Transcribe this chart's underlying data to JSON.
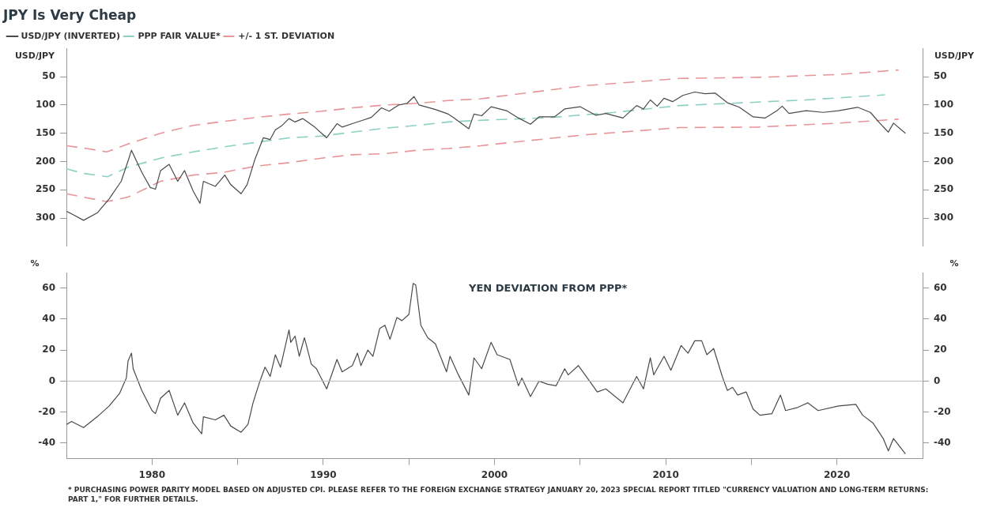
{
  "chart_data": [
    {
      "type": "line",
      "title": "JPY Is Very Cheap",
      "ylabel": "USD/JPY",
      "y2label": "USD/JPY",
      "xlim": [
        1975,
        2025
      ],
      "ylim": [
        350,
        0
      ],
      "yticks": [
        50,
        100,
        150,
        200,
        250,
        300
      ],
      "y2lim": [
        350,
        0
      ],
      "y2ticks": [
        50,
        100,
        150,
        200,
        250,
        300
      ],
      "tick_labels": "y",
      "grid": false,
      "legend": "top left",
      "marker": "none",
      "series": [
        {
          "name": "USD/JPY (INVERTED)",
          "color": "#4a4a4a",
          "line_style": "solid",
          "x": [
            1975.0,
            1975.2,
            1976.0,
            1976.8,
            1977.5,
            1978.2,
            1978.6,
            1978.8,
            1979.4,
            1979.9,
            1980.2,
            1980.5,
            1981.0,
            1981.5,
            1981.9,
            1982.4,
            1982.8,
            1983.0,
            1983.7,
            1984.25,
            1984.6,
            1985.2,
            1985.55,
            1986.0,
            1986.5,
            1986.9,
            1987.2,
            1987.6,
            1988.0,
            1988.35,
            1988.8,
            1989.5,
            1990.2,
            1990.8,
            1991.1,
            1991.7,
            1992.3,
            1992.8,
            1993.4,
            1993.85,
            1994.4,
            1994.9,
            1995.3,
            1995.6,
            1996.55,
            1997.3,
            1997.6,
            1998.5,
            1998.8,
            1999.25,
            1999.8,
            2000.7,
            2001.4,
            2002.1,
            2002.6,
            2003.5,
            2004.1,
            2005.0,
            2005.9,
            2006.5,
            2007.5,
            2008.3,
            2008.7,
            2009.1,
            2009.5,
            2009.9,
            2010.4,
            2011.0,
            2011.7,
            2012.3,
            2012.9,
            2013.6,
            2014.3,
            2015.1,
            2015.8,
            2016.5,
            2016.8,
            2017.2,
            2018.2,
            2019.2,
            2020.1,
            2021.2,
            2021.95,
            2022.5,
            2023.0,
            2023.3,
            2024.0
          ],
          "values": [
            288,
            291,
            304,
            291,
            266,
            235,
            199,
            180,
            219,
            246,
            249,
            216,
            205,
            235,
            216,
            252,
            274,
            235,
            244,
            224,
            241,
            257,
            241,
            197,
            158,
            161,
            144,
            136,
            124,
            130,
            124,
            139,
            158,
            133,
            139,
            133,
            127,
            122,
            105,
            111,
            100,
            97,
            85,
            100,
            108,
            116,
            122,
            142,
            116,
            119,
            103,
            110,
            123,
            134,
            121,
            121,
            107,
            103,
            118,
            115,
            123,
            101,
            107,
            91,
            102,
            88,
            94,
            83,
            77,
            80,
            79,
            96,
            104,
            121,
            123,
            110,
            102,
            115,
            110,
            113,
            110,
            104,
            113,
            132,
            148,
            132,
            150
          ]
        },
        {
          "name": "PPP FAIR VALUE*",
          "color": "#8ccfc3",
          "line_style": "dashed",
          "x": [
            1975.0,
            1976.0,
            1977.4,
            1978.6,
            1980.5,
            1982.4,
            1984.2,
            1986.1,
            1988.0,
            1989.9,
            1991.7,
            1993.6,
            1995.5,
            1997.3,
            1999.2,
            2001.0,
            2003.3,
            2007.0,
            2010.8,
            2014.5,
            2018.2,
            2022.8
          ],
          "values": [
            213,
            221,
            227,
            210,
            194,
            183,
            174,
            166,
            158,
            155,
            148,
            141,
            136,
            130,
            127,
            125,
            122,
            113,
            101,
            96,
            91,
            82
          ]
        },
        {
          "name": "+/- 1 ST. DEVIATION",
          "color": "#e8959a",
          "line_style": "dashed",
          "x": [
            1975.0,
            1976.2,
            1977.35,
            1978.6,
            1980.5,
            1982.4,
            1984.2,
            1986.1,
            1988.0,
            1989.9,
            1991.7,
            1993.6,
            1995.5,
            1997.3,
            1999.2,
            2000.7,
            2005.2,
            2010.8,
            2015.4,
            2020.1,
            2023.6
          ],
          "values": [
            172,
            177,
            183,
            169,
            150,
            136,
            129,
            122,
            116,
            111,
            105,
            100,
            97,
            92,
            89,
            83,
            66,
            53,
            51,
            46,
            38
          ]
        },
        {
          "color": "#e8959a",
          "line_style": "dashed",
          "x": [
            1975.0,
            1977.35,
            1978.6,
            1980.5,
            1982.4,
            1984.2,
            1986.1,
            1988.0,
            1989.9,
            1991.7,
            1993.6,
            1995.5,
            1997.3,
            1999.2,
            2000.7,
            2005.2,
            2010.8,
            2015.4,
            2020.1,
            2023.6
          ],
          "values": [
            257,
            271,
            263,
            235,
            224,
            219,
            208,
            202,
            194,
            188,
            186,
            180,
            177,
            172,
            167,
            153,
            140,
            139,
            132,
            125
          ]
        }
      ]
    },
    {
      "type": "line",
      "title": "YEN DEVIATION FROM PPP*",
      "ylabel": "%",
      "y2label": "%",
      "xlim": [
        1975,
        2025
      ],
      "ylim": [
        -50,
        70
      ],
      "yticks": [
        -40,
        -20,
        0,
        20,
        40,
        60
      ],
      "y2lim": [
        -50,
        70
      ],
      "y2ticks": [
        -40,
        -20,
        0,
        20,
        40,
        60
      ],
      "xticks": [
        1980,
        {
          "value": 1985,
          "label": null
        },
        1990,
        {
          "value": 1995,
          "label": null
        },
        2000,
        {
          "value": 2005,
          "label": null
        },
        2010,
        {
          "value": 2015,
          "label": null
        },
        2020
      ],
      "grid": false,
      "legend": false,
      "marker": "none",
      "ref_lines": [
        {
          "axis": "y",
          "value": 0,
          "color": "#bbbbbb"
        }
      ],
      "annotations": [
        "* PURCHASING POWER PARITY MODEL BASED ON ADJUSTED CPI. PLEASE REFER TO THE FOREIGN EXCHANGE STRATEGY JANUARY 20, 2023 SPECIAL REPORT TITLED \"CURRENCY VALUATION AND LONG-TERM RETURNS: PART 1,\" FOR FURTHER DETAILS."
      ],
      "series": [
        {
          "color": "#4a4a4a",
          "x": [
            1975.0,
            1975.3,
            1976.0,
            1976.8,
            1977.5,
            1978.1,
            1978.5,
            1978.6,
            1978.8,
            1978.9,
            1979.4,
            1980.0,
            1980.2,
            1980.5,
            1981.0,
            1981.5,
            1981.9,
            1982.4,
            1982.9,
            1983.0,
            1983.7,
            1984.2,
            1984.6,
            1985.2,
            1985.6,
            1985.9,
            1986.3,
            1986.6,
            1986.9,
            1987.2,
            1987.5,
            1988.0,
            1988.1,
            1988.35,
            1988.6,
            1988.9,
            1989.3,
            1989.6,
            1990.2,
            1990.8,
            1991.1,
            1991.7,
            1992.0,
            1992.2,
            1992.6,
            1992.9,
            1993.3,
            1993.6,
            1993.9,
            1994.3,
            1994.6,
            1995.0,
            1995.25,
            1995.4,
            1995.7,
            1996.1,
            1996.55,
            1997.2,
            1997.4,
            1997.85,
            1998.5,
            1998.8,
            1999.25,
            1999.8,
            2000.15,
            2000.9,
            2001.4,
            2001.6,
            2002.1,
            2002.6,
            2003.1,
            2003.6,
            2004.1,
            2004.3,
            2004.9,
            2005.55,
            2006.0,
            2006.5,
            2007.5,
            2008.3,
            2008.7,
            2009.1,
            2009.3,
            2009.9,
            2010.3,
            2010.9,
            2011.3,
            2011.7,
            2012.1,
            2012.4,
            2012.8,
            2013.3,
            2013.6,
            2013.9,
            2014.2,
            2014.7,
            2015.1,
            2015.5,
            2016.2,
            2016.7,
            2017.0,
            2017.7,
            2018.3,
            2018.9,
            2020.1,
            2021.1,
            2021.5,
            2022.1,
            2022.7,
            2023.0,
            2023.3,
            2024.0
          ],
          "values": [
            -28,
            -26,
            -30,
            -23,
            -16,
            -8,
            2,
            13,
            18,
            8,
            -6,
            -19,
            -21,
            -11,
            -6,
            -22,
            -14,
            -27,
            -34,
            -23,
            -25,
            -22,
            -29,
            -33,
            -28,
            -14,
            0,
            9,
            3,
            17,
            9,
            33,
            25,
            29,
            16,
            28,
            11,
            8,
            -5,
            14,
            6,
            10,
            18,
            10,
            20,
            16,
            34,
            36,
            27,
            41,
            39,
            43,
            63,
            62,
            36,
            28,
            24,
            6,
            16,
            5,
            -9,
            15,
            8,
            25,
            17,
            14,
            -3,
            2,
            -10,
            0,
            -2,
            -3,
            8,
            4,
            10,
            0,
            -7,
            -5,
            -14,
            3,
            -5,
            15,
            4,
            16,
            7,
            23,
            18,
            26,
            26,
            17,
            21,
            3,
            -6,
            -4,
            -9,
            -7,
            -18,
            -22,
            -21,
            -9,
            -19,
            -17,
            -14,
            -19,
            -16,
            -15,
            -22,
            -27,
            -37,
            -45,
            -37,
            -47
          ]
        }
      ]
    }
  ]
}
